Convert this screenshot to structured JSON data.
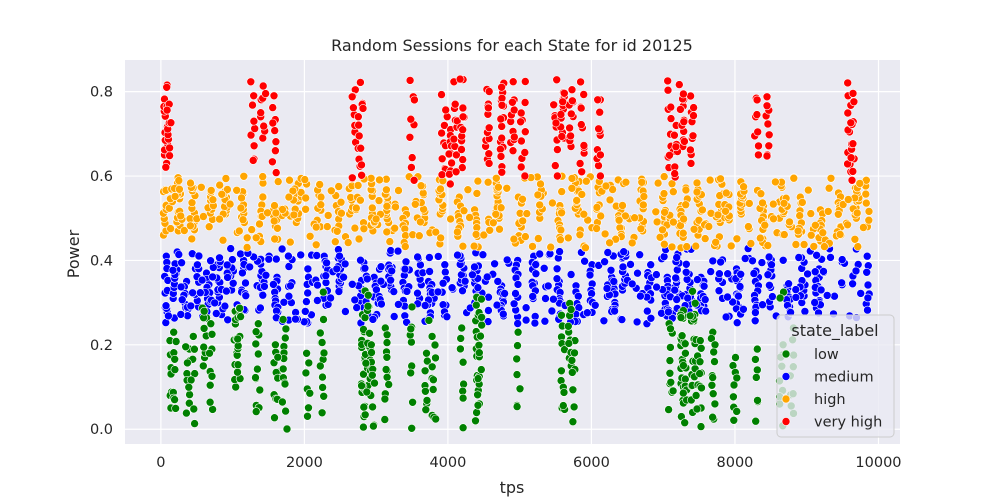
{
  "chart_data": {
    "type": "scatter",
    "title": "Random Sessions for each State for id 20125",
    "xlabel": "tps",
    "ylabel": "Power",
    "xlim": [
      -500,
      10300
    ],
    "ylim": [
      -0.035,
      0.875
    ],
    "xticks": [
      0,
      2000,
      4000,
      6000,
      8000,
      10000
    ],
    "xtick_labels": [
      "0",
      "2000",
      "4000",
      "6000",
      "8000",
      "10000"
    ],
    "yticks": [
      0.0,
      0.2,
      0.4,
      0.6,
      0.8
    ],
    "ytick_labels": [
      "0.0",
      "0.2",
      "0.4",
      "0.6",
      "0.8"
    ],
    "grid": true,
    "legend": {
      "title": "state_label",
      "placement": "lower-right"
    },
    "series": [
      {
        "name": "low",
        "color": "#008000",
        "y_range": [
          0.0,
          0.33
        ],
        "points": [
          [
            150,
            0.21
          ],
          [
            200,
            0.23
          ],
          [
            380,
            0.19
          ],
          [
            450,
            0.22
          ],
          [
            610,
            0.15
          ],
          [
            700,
            0.25
          ],
          [
            1050,
            0.1
          ],
          [
            1080,
            0.12
          ],
          [
            1350,
            0.25
          ],
          [
            1600,
            0.2
          ],
          [
            1720,
            0.26
          ],
          [
            2050,
            0.18
          ],
          [
            2250,
            0.26
          ],
          [
            2820,
            0.03
          ],
          [
            2850,
            0.005
          ],
          [
            2900,
            0.08
          ],
          [
            2950,
            0.2
          ],
          [
            3150,
            0.24
          ],
          [
            3500,
            0.29
          ],
          [
            3700,
            0.18
          ],
          [
            3800,
            0.22
          ],
          [
            4200,
            0.24
          ],
          [
            4400,
            0.02
          ],
          [
            4420,
            0.06
          ],
          [
            4450,
            0.12
          ],
          [
            4980,
            0.23
          ],
          [
            5600,
            0.27
          ],
          [
            5700,
            0.15
          ],
          [
            5750,
            0.21
          ],
          [
            7100,
            0.25
          ],
          [
            7250,
            0.03
          ],
          [
            7280,
            0.1
          ],
          [
            7300,
            0.18
          ],
          [
            7400,
            0.04
          ],
          [
            7430,
            0.08
          ],
          [
            7500,
            0.21
          ],
          [
            7700,
            0.23
          ],
          [
            8000,
            0.17
          ],
          [
            8300,
            0.19
          ],
          [
            8650,
            0.2
          ],
          [
            8800,
            0.24
          ]
        ]
      },
      {
        "name": "medium",
        "color": "#0000ff",
        "y_range": [
          0.25,
          0.43
        ],
        "points": [
          [
            80,
            0.41
          ],
          [
            200,
            0.31
          ],
          [
            350,
            0.35
          ],
          [
            500,
            0.29
          ],
          [
            650,
            0.37
          ],
          [
            800,
            0.3
          ],
          [
            1000,
            0.33
          ],
          [
            1150,
            0.4
          ],
          [
            1400,
            0.32
          ],
          [
            1600,
            0.36
          ],
          [
            1800,
            0.3
          ],
          [
            2050,
            0.38
          ],
          [
            2300,
            0.41
          ],
          [
            2500,
            0.33
          ],
          [
            2800,
            0.3
          ],
          [
            3000,
            0.36
          ],
          [
            3200,
            0.33
          ],
          [
            3400,
            0.38
          ],
          [
            3600,
            0.31
          ],
          [
            3750,
            0.35
          ],
          [
            3950,
            0.39
          ],
          [
            4200,
            0.33
          ],
          [
            4400,
            0.3
          ],
          [
            4750,
            0.34
          ],
          [
            4950,
            0.4
          ],
          [
            5200,
            0.41
          ],
          [
            5550,
            0.35
          ],
          [
            5800,
            0.34
          ],
          [
            6000,
            0.39
          ],
          [
            6300,
            0.36
          ],
          [
            6450,
            0.33
          ],
          [
            6800,
            0.39
          ],
          [
            7050,
            0.36
          ],
          [
            7200,
            0.32
          ],
          [
            7350,
            0.28
          ],
          [
            7550,
            0.36
          ],
          [
            7800,
            0.31
          ],
          [
            8050,
            0.38
          ],
          [
            8300,
            0.36
          ],
          [
            8500,
            0.29
          ],
          [
            8750,
            0.34
          ],
          [
            8950,
            0.3
          ],
          [
            9150,
            0.38
          ],
          [
            9850,
            0.41
          ]
        ]
      },
      {
        "name": "high",
        "color": "#ffa500",
        "y_range": [
          0.43,
          0.6
        ],
        "points": [
          [
            50,
            0.46
          ],
          [
            250,
            0.47
          ],
          [
            450,
            0.49
          ],
          [
            700,
            0.48
          ],
          [
            900,
            0.51
          ],
          [
            1150,
            0.49
          ],
          [
            1400,
            0.55
          ],
          [
            1600,
            0.52
          ],
          [
            1900,
            0.49
          ],
          [
            2200,
            0.48
          ],
          [
            2450,
            0.53
          ],
          [
            2650,
            0.51
          ],
          [
            2950,
            0.47
          ],
          [
            3150,
            0.49
          ],
          [
            3400,
            0.52
          ],
          [
            3650,
            0.49
          ],
          [
            3900,
            0.51
          ],
          [
            4150,
            0.55
          ],
          [
            4400,
            0.52
          ],
          [
            4700,
            0.5
          ],
          [
            5000,
            0.55
          ],
          [
            5300,
            0.5
          ],
          [
            5550,
            0.53
          ],
          [
            5800,
            0.51
          ],
          [
            6100,
            0.49
          ],
          [
            6400,
            0.52
          ],
          [
            6700,
            0.47
          ],
          [
            7000,
            0.49
          ],
          [
            7250,
            0.53
          ],
          [
            7500,
            0.46
          ],
          [
            7800,
            0.49
          ],
          [
            8100,
            0.51
          ],
          [
            8400,
            0.53
          ],
          [
            8650,
            0.5
          ],
          [
            8900,
            0.55
          ],
          [
            9200,
            0.52
          ],
          [
            9450,
            0.56
          ],
          [
            9700,
            0.5
          ],
          [
            9850,
            0.48
          ]
        ]
      },
      {
        "name": "very high",
        "color": "#ff0000",
        "y_range": [
          0.57,
          0.83
        ],
        "points": [
          [
            70,
            0.65
          ],
          [
            110,
            0.63
          ],
          [
            1280,
            0.64
          ],
          [
            1420,
            0.69
          ],
          [
            1580,
            0.66
          ],
          [
            2700,
            0.68
          ],
          [
            2780,
            0.64
          ],
          [
            3500,
            0.59
          ],
          [
            3940,
            0.72
          ],
          [
            4030,
            0.71
          ],
          [
            4100,
            0.65
          ],
          [
            4200,
            0.62
          ],
          [
            4550,
            0.64
          ],
          [
            4750,
            0.82
          ],
          [
            4900,
            0.66
          ],
          [
            5050,
            0.6
          ],
          [
            5500,
            0.6
          ],
          [
            5600,
            0.69
          ],
          [
            5720,
            0.67
          ],
          [
            5870,
            0.61
          ],
          [
            6100,
            0.6
          ],
          [
            7080,
            0.62
          ],
          [
            7170,
            0.72
          ],
          [
            7260,
            0.67
          ],
          [
            7400,
            0.63
          ],
          [
            8300,
            0.65
          ],
          [
            8450,
            0.65
          ],
          [
            9600,
            0.61
          ],
          [
            9650,
            0.59
          ]
        ]
      }
    ]
  }
}
